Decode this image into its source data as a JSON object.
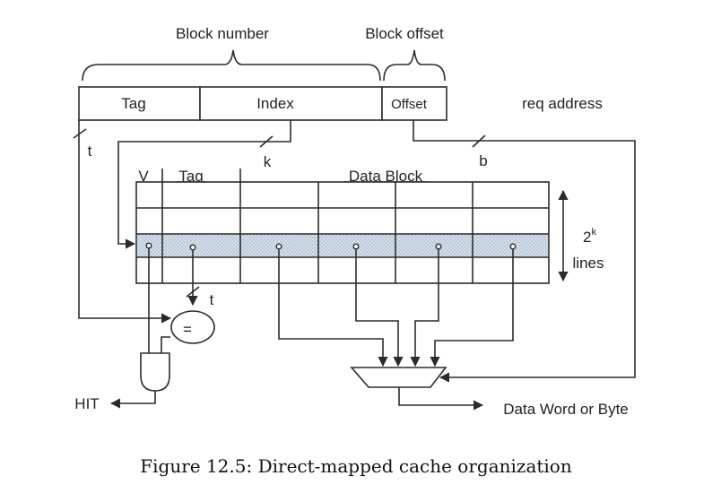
{
  "labels": {
    "block_number": "Block number",
    "block_offset": "Block offset",
    "tag": "Tag",
    "index": "Index",
    "offset": "Offset",
    "req_address": "req address",
    "t_top": "t",
    "k": "k",
    "b": "b",
    "v_col": "V",
    "tag_col": "Tag",
    "data_block": "Data Block",
    "lines_exp_base": "2",
    "lines_exp_sup": "k",
    "lines_word": "lines",
    "t_mid": "t",
    "equals": "=",
    "hit": "HIT",
    "data_word": "Data Word or Byte"
  },
  "caption": "Figure 12.5: Direct-mapped cache organization",
  "colors": {
    "stroke": "#2b2b2b",
    "selected_row": "#cfdbe8"
  }
}
